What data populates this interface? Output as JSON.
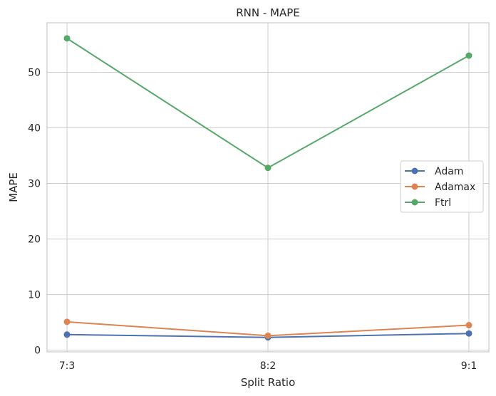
{
  "chart_data": {
    "type": "line",
    "title": "RNN - MAPE",
    "xlabel": "Split Ratio",
    "ylabel": "MAPE",
    "categories": [
      "7:3",
      "8:2",
      "9:1"
    ],
    "ylim": [
      -0.3,
      58.9
    ],
    "yticks": [
      0,
      10,
      20,
      30,
      40,
      50
    ],
    "grid": true,
    "legend_position": "center-right",
    "markers": true,
    "series": [
      {
        "name": "Adam",
        "color": "#4c72b0",
        "values": [
          2.8,
          2.3,
          3.0
        ]
      },
      {
        "name": "Adamax",
        "color": "#dd8452",
        "values": [
          5.1,
          2.6,
          4.5
        ]
      },
      {
        "name": "Ftrl",
        "color": "#55a868",
        "values": [
          56.1,
          32.8,
          53.0
        ]
      }
    ]
  }
}
